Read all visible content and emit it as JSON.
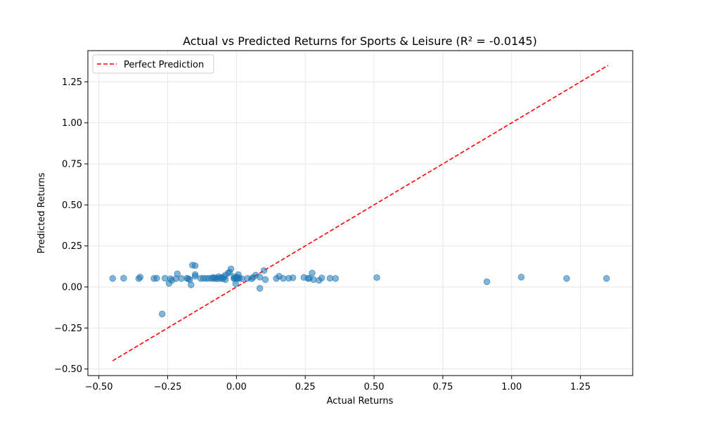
{
  "chart_data": {
    "type": "scatter",
    "title": "Actual vs Predicted Returns for Sports & Leisure (R² = -0.0145)",
    "xlabel": "Actual Returns",
    "ylabel": "Predicted Returns",
    "xlim": [
      -0.54,
      1.44
    ],
    "ylim": [
      -0.54,
      1.44
    ],
    "x_ticks": [
      -0.5,
      -0.25,
      0.0,
      0.25,
      0.5,
      0.75,
      1.0,
      1.25
    ],
    "x_tick_labels": [
      "−0.50",
      "−0.25",
      "0.00",
      "0.25",
      "0.50",
      "0.75",
      "1.00",
      "1.25"
    ],
    "y_ticks": [
      -0.5,
      -0.25,
      0.0,
      0.25,
      0.5,
      0.75,
      1.0,
      1.25
    ],
    "y_tick_labels": [
      "−0.50",
      "−0.25",
      "0.00",
      "0.25",
      "0.50",
      "0.75",
      "1.00",
      "1.25"
    ],
    "grid": true,
    "legend_position": "top-left",
    "colors": {
      "points": "#1f77b4",
      "line": "#ff0000"
    },
    "reference_line": {
      "name": "Perfect Prediction",
      "x": [
        -0.45,
        1.35
      ],
      "y": [
        -0.45,
        1.35
      ],
      "style": "dashed"
    },
    "points": [
      [
        -0.45,
        0.052
      ],
      [
        -0.41,
        0.053
      ],
      [
        -0.355,
        0.051
      ],
      [
        -0.35,
        0.06
      ],
      [
        -0.3,
        0.052
      ],
      [
        -0.29,
        0.053
      ],
      [
        -0.27,
        -0.165
      ],
      [
        -0.26,
        0.053
      ],
      [
        -0.245,
        0.022
      ],
      [
        -0.24,
        0.05
      ],
      [
        -0.235,
        0.04
      ],
      [
        -0.22,
        0.05
      ],
      [
        -0.215,
        0.08
      ],
      [
        -0.2,
        0.052
      ],
      [
        -0.18,
        0.053
      ],
      [
        -0.175,
        0.05
      ],
      [
        -0.17,
        0.045
      ],
      [
        -0.165,
        0.013
      ],
      [
        -0.16,
        0.133
      ],
      [
        -0.15,
        0.13
      ],
      [
        -0.15,
        0.076
      ],
      [
        -0.15,
        0.065
      ],
      [
        -0.13,
        0.052
      ],
      [
        -0.12,
        0.053
      ],
      [
        -0.11,
        0.052
      ],
      [
        -0.1,
        0.053
      ],
      [
        -0.09,
        0.052
      ],
      [
        -0.085,
        0.058
      ],
      [
        -0.08,
        0.052
      ],
      [
        -0.075,
        0.055
      ],
      [
        -0.07,
        0.05
      ],
      [
        -0.065,
        0.063
      ],
      [
        -0.06,
        0.052
      ],
      [
        -0.055,
        0.058
      ],
      [
        -0.05,
        0.05
      ],
      [
        -0.045,
        0.06
      ],
      [
        -0.04,
        0.072
      ],
      [
        -0.04,
        0.045
      ],
      [
        -0.03,
        0.085
      ],
      [
        -0.025,
        0.09
      ],
      [
        -0.02,
        0.11
      ],
      [
        -0.01,
        0.053
      ],
      [
        -0.008,
        0.063
      ],
      [
        -0.005,
        0.05
      ],
      [
        -0.003,
        0.02
      ],
      [
        0.0,
        0.055
      ],
      [
        0.002,
        0.06
      ],
      [
        0.005,
        0.052
      ],
      [
        0.007,
        0.075
      ],
      [
        0.01,
        0.053
      ],
      [
        0.02,
        0.05
      ],
      [
        0.04,
        0.052
      ],
      [
        0.055,
        0.05
      ],
      [
        0.06,
        0.058
      ],
      [
        0.07,
        0.072
      ],
      [
        0.085,
        0.06
      ],
      [
        0.085,
        -0.008
      ],
      [
        0.1,
        0.1
      ],
      [
        0.105,
        0.045
      ],
      [
        0.145,
        0.052
      ],
      [
        0.155,
        0.065
      ],
      [
        0.17,
        0.052
      ],
      [
        0.19,
        0.053
      ],
      [
        0.205,
        0.056
      ],
      [
        0.245,
        0.058
      ],
      [
        0.26,
        0.052
      ],
      [
        0.265,
        0.053
      ],
      [
        0.275,
        0.085
      ],
      [
        0.28,
        0.045
      ],
      [
        0.3,
        0.04
      ],
      [
        0.31,
        0.055
      ],
      [
        0.34,
        0.053
      ],
      [
        0.36,
        0.052
      ],
      [
        0.51,
        0.057
      ],
      [
        0.91,
        0.032
      ],
      [
        1.035,
        0.06
      ],
      [
        1.2,
        0.052
      ],
      [
        1.345,
        0.052
      ]
    ]
  }
}
